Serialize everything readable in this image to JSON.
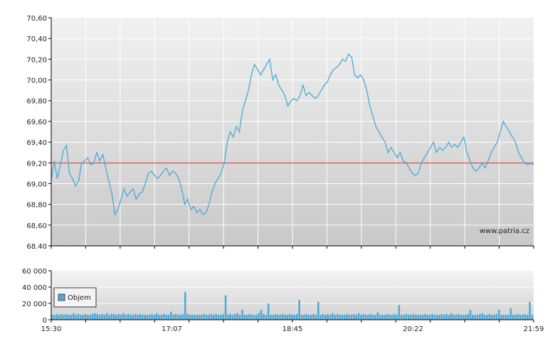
{
  "chart_data": [
    {
      "type": "line",
      "series": [
        {
          "values": [
            [
              0,
              69.04
            ],
            [
              2,
              69.22
            ],
            [
              4,
              69.05
            ],
            [
              6,
              69.18
            ],
            [
              8,
              69.32
            ],
            [
              10,
              69.37
            ],
            [
              12,
              69.1
            ],
            [
              14,
              69.05
            ],
            [
              16,
              68.98
            ],
            [
              18,
              69.02
            ],
            [
              20,
              69.2
            ],
            [
              22,
              69.22
            ],
            [
              24,
              69.25
            ],
            [
              26,
              69.18
            ],
            [
              28,
              69.2
            ],
            [
              30,
              69.3
            ],
            [
              32,
              69.22
            ],
            [
              34,
              69.28
            ],
            [
              36,
              69.15
            ],
            [
              38,
              69.02
            ],
            [
              40,
              68.9
            ],
            [
              42,
              68.7
            ],
            [
              44,
              68.75
            ],
            [
              46,
              68.85
            ],
            [
              48,
              68.95
            ],
            [
              50,
              68.88
            ],
            [
              52,
              68.92
            ],
            [
              54,
              68.95
            ],
            [
              56,
              68.85
            ],
            [
              58,
              68.9
            ],
            [
              60,
              68.92
            ],
            [
              62,
              69.0
            ],
            [
              64,
              69.1
            ],
            [
              66,
              69.12
            ],
            [
              68,
              69.08
            ],
            [
              70,
              69.05
            ],
            [
              72,
              69.08
            ],
            [
              74,
              69.12
            ],
            [
              76,
              69.15
            ],
            [
              78,
              69.08
            ],
            [
              80,
              69.12
            ],
            [
              82,
              69.1
            ],
            [
              84,
              69.05
            ],
            [
              86,
              68.95
            ],
            [
              88,
              68.8
            ],
            [
              90,
              68.85
            ],
            [
              92,
              68.75
            ],
            [
              94,
              68.78
            ],
            [
              96,
              68.72
            ],
            [
              98,
              68.75
            ],
            [
              100,
              68.7
            ],
            [
              102,
              68.72
            ],
            [
              104,
              68.8
            ],
            [
              106,
              68.92
            ],
            [
              108,
              69.0
            ],
            [
              110,
              69.05
            ],
            [
              112,
              69.1
            ],
            [
              114,
              69.2
            ],
            [
              116,
              69.4
            ],
            [
              118,
              69.5
            ],
            [
              120,
              69.45
            ],
            [
              122,
              69.55
            ],
            [
              124,
              69.5
            ],
            [
              126,
              69.7
            ],
            [
              128,
              69.8
            ],
            [
              130,
              69.9
            ],
            [
              132,
              70.05
            ],
            [
              134,
              70.15
            ],
            [
              136,
              70.1
            ],
            [
              138,
              70.05
            ],
            [
              140,
              70.1
            ],
            [
              142,
              70.15
            ],
            [
              144,
              70.2
            ],
            [
              146,
              70.0
            ],
            [
              148,
              70.05
            ],
            [
              150,
              69.95
            ],
            [
              152,
              69.9
            ],
            [
              154,
              69.85
            ],
            [
              156,
              69.75
            ],
            [
              158,
              69.8
            ],
            [
              160,
              69.82
            ],
            [
              162,
              69.8
            ],
            [
              164,
              69.85
            ],
            [
              166,
              69.95
            ],
            [
              168,
              69.85
            ],
            [
              170,
              69.88
            ],
            [
              172,
              69.85
            ],
            [
              174,
              69.82
            ],
            [
              176,
              69.85
            ],
            [
              178,
              69.9
            ],
            [
              180,
              69.95
            ],
            [
              182,
              69.98
            ],
            [
              184,
              70.05
            ],
            [
              186,
              70.1
            ],
            [
              188,
              70.12
            ],
            [
              190,
              70.15
            ],
            [
              192,
              70.2
            ],
            [
              194,
              70.18
            ],
            [
              196,
              70.25
            ],
            [
              198,
              70.22
            ],
            [
              200,
              70.05
            ],
            [
              202,
              70.02
            ],
            [
              204,
              70.05
            ],
            [
              206,
              70.0
            ],
            [
              208,
              69.9
            ],
            [
              210,
              69.75
            ],
            [
              212,
              69.65
            ],
            [
              214,
              69.55
            ],
            [
              216,
              69.5
            ],
            [
              218,
              69.45
            ],
            [
              220,
              69.4
            ],
            [
              222,
              69.3
            ],
            [
              224,
              69.35
            ],
            [
              226,
              69.3
            ],
            [
              228,
              69.25
            ],
            [
              230,
              69.3
            ],
            [
              232,
              69.22
            ],
            [
              234,
              69.2
            ],
            [
              236,
              69.15
            ],
            [
              238,
              69.1
            ],
            [
              240,
              69.08
            ],
            [
              242,
              69.1
            ],
            [
              244,
              69.2
            ],
            [
              246,
              69.25
            ],
            [
              248,
              69.3
            ],
            [
              250,
              69.35
            ],
            [
              252,
              69.4
            ],
            [
              254,
              69.3
            ],
            [
              256,
              69.35
            ],
            [
              258,
              69.32
            ],
            [
              260,
              69.35
            ],
            [
              262,
              69.4
            ],
            [
              264,
              69.35
            ],
            [
              266,
              69.38
            ],
            [
              268,
              69.35
            ],
            [
              270,
              69.4
            ],
            [
              272,
              69.45
            ],
            [
              274,
              69.3
            ],
            [
              276,
              69.22
            ],
            [
              278,
              69.15
            ],
            [
              280,
              69.12
            ],
            [
              282,
              69.15
            ],
            [
              284,
              69.2
            ],
            [
              286,
              69.15
            ],
            [
              288,
              69.22
            ],
            [
              290,
              69.3
            ],
            [
              292,
              69.35
            ],
            [
              294,
              69.4
            ],
            [
              296,
              69.5
            ],
            [
              298,
              69.6
            ],
            [
              300,
              69.55
            ],
            [
              302,
              69.5
            ],
            [
              304,
              69.45
            ],
            [
              306,
              69.4
            ],
            [
              308,
              69.3
            ],
            [
              310,
              69.25
            ],
            [
              312,
              69.2
            ],
            [
              314,
              69.18
            ],
            [
              316,
              69.2
            ],
            [
              318,
              69.18
            ]
          ]
        }
      ],
      "reference_line": 69.2,
      "x_ticks": [
        "15:30",
        "17:07",
        "18:45",
        "20:22",
        "21:59"
      ],
      "y_ticks": [
        "68.40",
        "68,60",
        "68,80",
        "69,00",
        "69,20",
        "69,40",
        "69,60",
        "69,80",
        "70,00",
        "70,20",
        "70,40",
        "70,60"
      ],
      "ylim": [
        68.4,
        70.6
      ],
      "watermark": "www.patria.cz",
      "colors": {
        "line": "#4aa8d8",
        "reference": "#cc2222"
      }
    },
    {
      "type": "bar",
      "legend": "Objem",
      "y_ticks": [
        "0",
        "20 000",
        "40 000",
        "60 000"
      ],
      "ylim": [
        0,
        60000
      ],
      "values": [
        6000,
        6000,
        7000,
        6000,
        7000,
        6000,
        7000,
        6000,
        6000,
        8000,
        6000,
        7000,
        6000,
        6000,
        7000,
        6000,
        6000,
        7000,
        8000,
        7000,
        6000,
        7000,
        6000,
        8000,
        6000,
        7000,
        7000,
        6000,
        7000,
        6000,
        8000,
        6000,
        7000,
        6000,
        6000,
        7000,
        6000,
        7000,
        6000,
        6000,
        6000,
        6000,
        7000,
        6000,
        8000,
        6000,
        6000,
        7000,
        6000,
        6000,
        10000,
        6000,
        7000,
        6000,
        6000,
        7000,
        34000,
        7000,
        6000,
        6000,
        6000,
        6000,
        6000,
        6000,
        7000,
        6000,
        6000,
        7000,
        6000,
        7000,
        6000,
        6000,
        7000,
        30000,
        6000,
        7000,
        6000,
        7000,
        8000,
        6000,
        12000,
        6000,
        6000,
        7000,
        6000,
        6000,
        6000,
        8000,
        12000,
        7000,
        6000,
        20000,
        6000,
        6000,
        7000,
        6000,
        6000,
        7000,
        6000,
        6000,
        7000,
        6000,
        6000,
        7000,
        24000,
        6000,
        6000,
        7000,
        6000,
        6000,
        7000,
        6000,
        22000,
        6000,
        7000,
        6000,
        7000,
        6000,
        8000,
        6000,
        7000,
        6000,
        6000,
        6000,
        7000,
        6000,
        6000,
        7000,
        6000,
        8000,
        6000,
        7000,
        6000,
        6000,
        7000,
        6000,
        6000,
        9000,
        6000,
        6000,
        6000,
        7000,
        6000,
        6000,
        7000,
        6000,
        18000,
        6000,
        6000,
        7000,
        6000,
        6000,
        7000,
        6000,
        6000,
        6000,
        6000,
        7000,
        6000,
        6000,
        7000,
        6000,
        6000,
        6000,
        7000,
        6000,
        7000,
        6000,
        8000,
        6000,
        6000,
        7000,
        6000,
        6000,
        6000,
        7000,
        12000,
        6000,
        6000,
        6000,
        7000,
        8000,
        6000,
        6000,
        7000,
        6000,
        6000,
        7000,
        12000,
        6000,
        6000,
        6000,
        6000,
        14000,
        6000,
        6000,
        7000,
        6000,
        6000,
        7000,
        6000,
        22000,
        6000
      ]
    }
  ]
}
